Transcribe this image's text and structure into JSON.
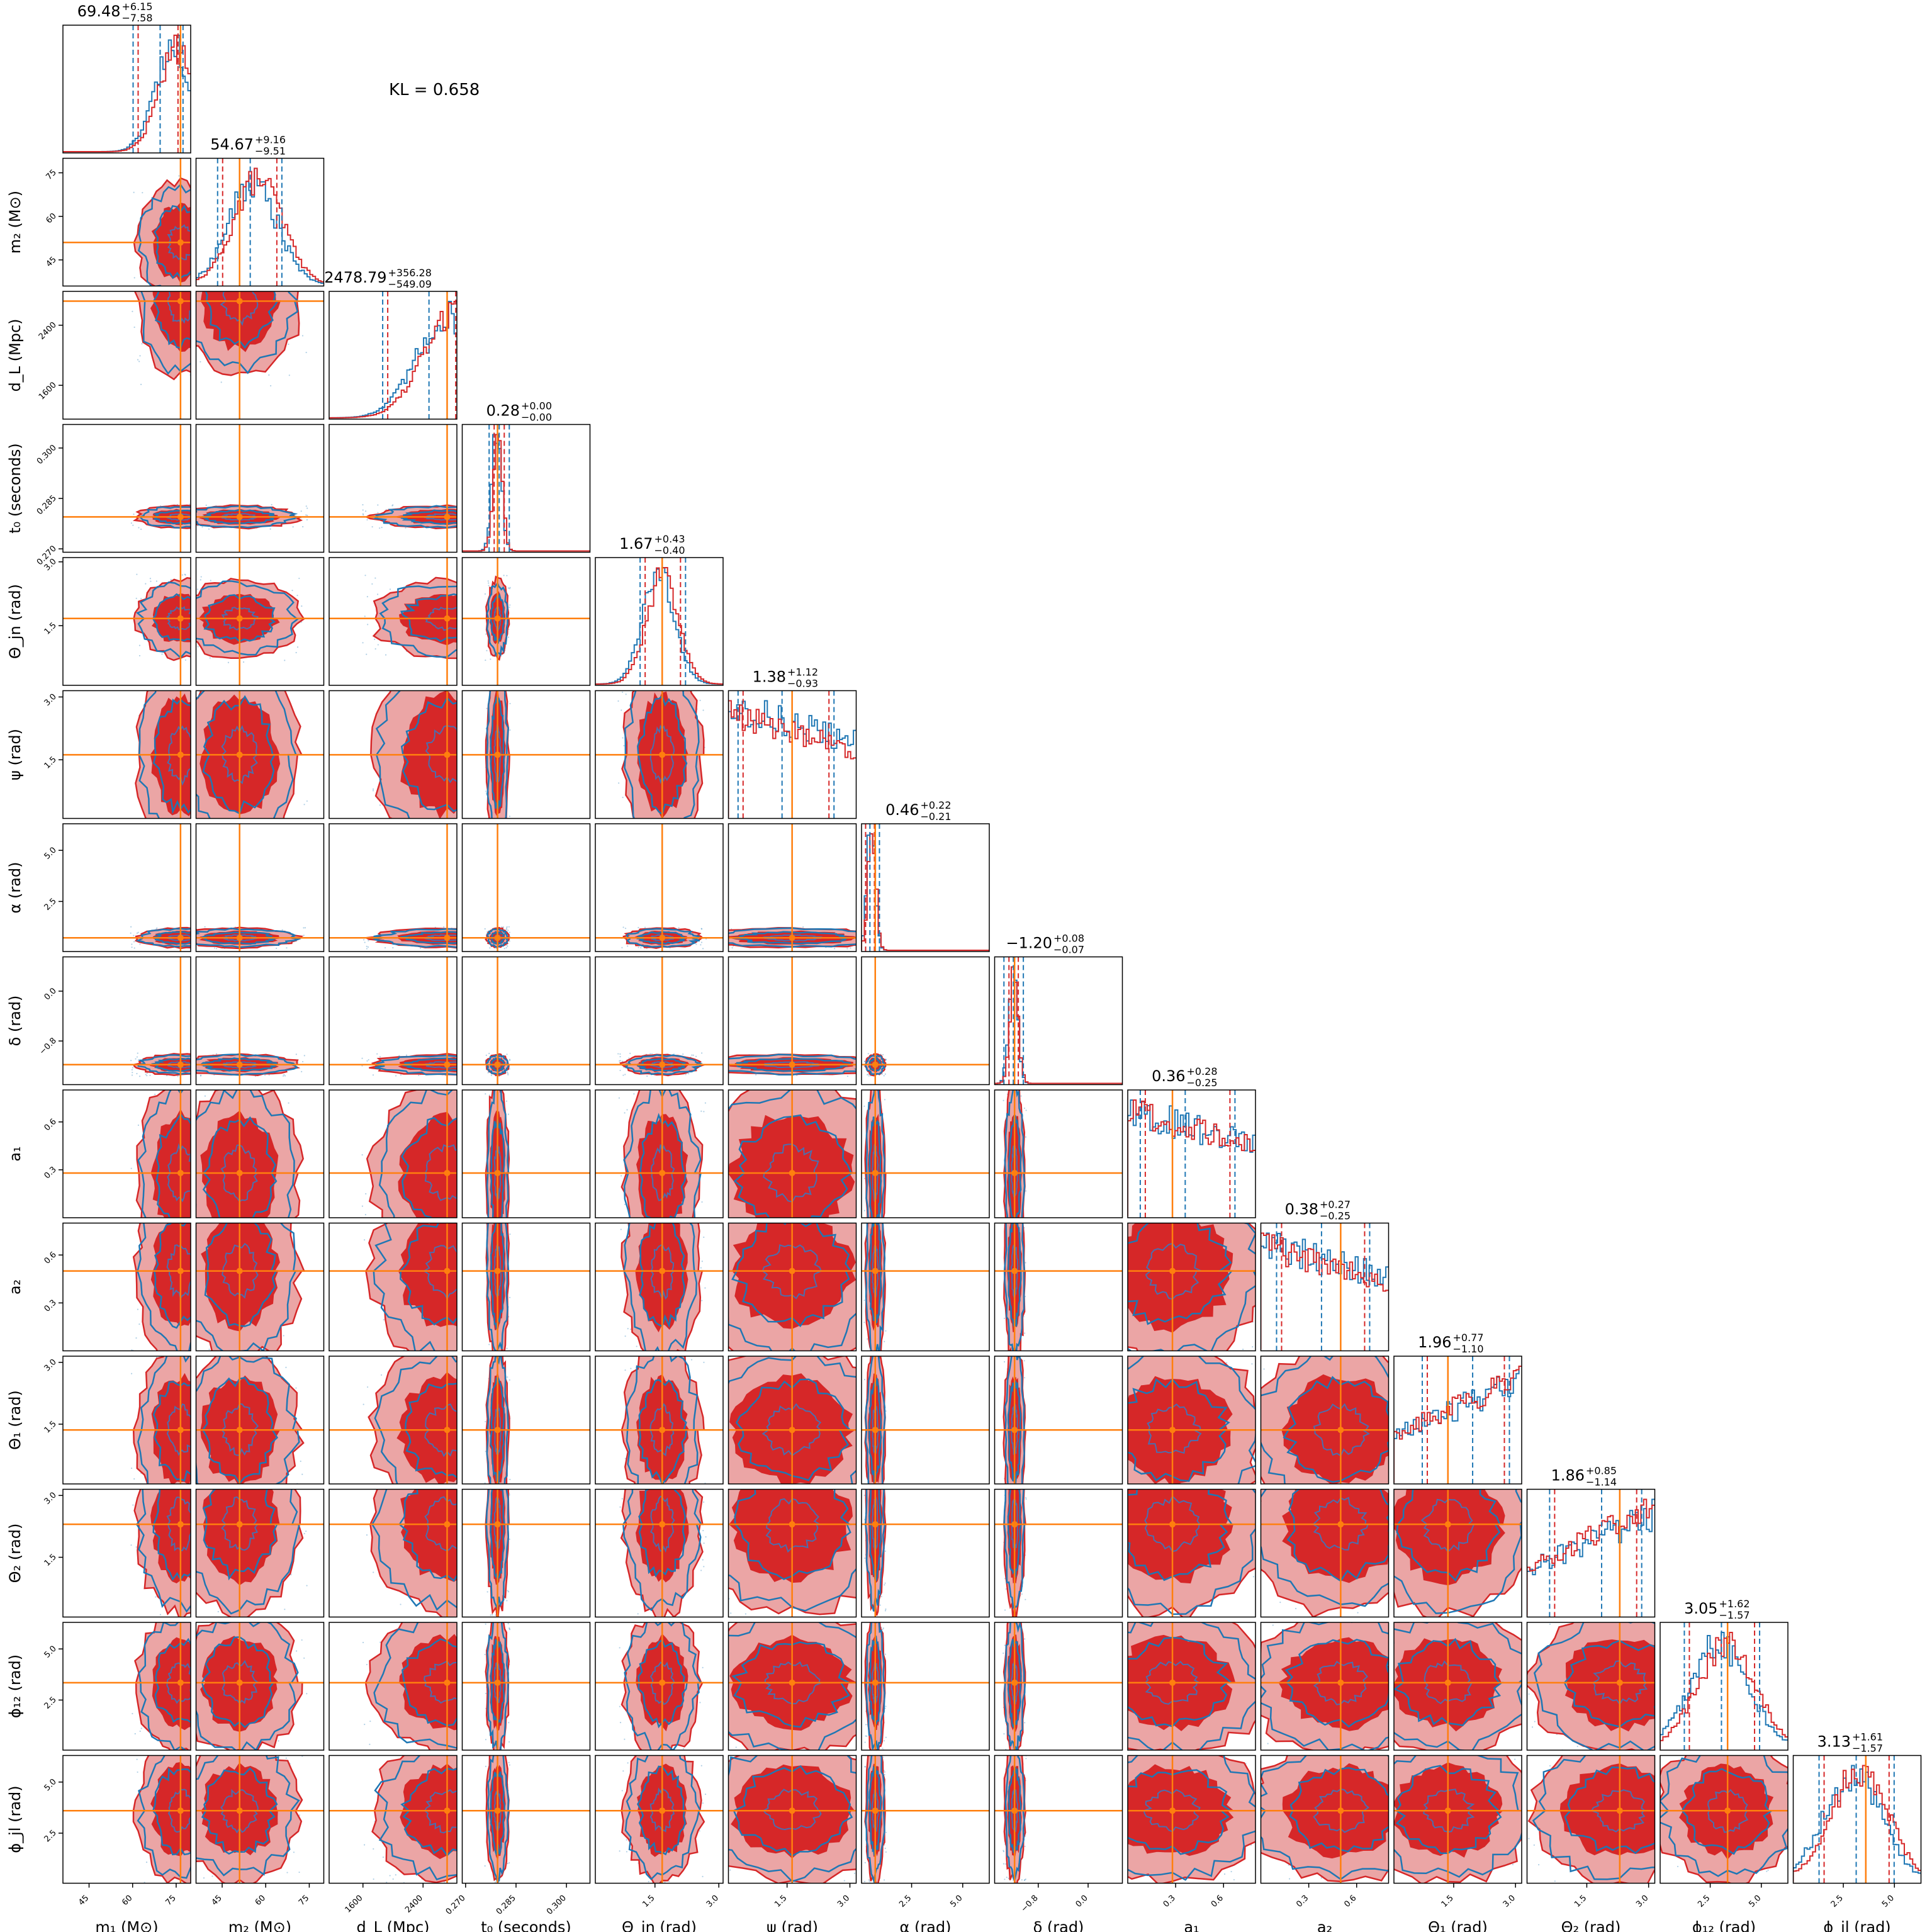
{
  "annotation": "KL = 0.658",
  "colors": {
    "series_blue": "#1f77b4",
    "series_red": "#d62728",
    "series_red_light": "#eba5a5",
    "truth": "#ff7f0e"
  },
  "chart_data": {
    "type": "corner",
    "series": [
      {
        "color": "#1f77b4",
        "style": "contours"
      },
      {
        "color": "#d62728",
        "style": "filled-contours"
      }
    ],
    "parameters": [
      {
        "label": "m₁ (M⊙)",
        "title": "69.48",
        "plus": "+6.15",
        "minus": "−7.58",
        "ticks": [
          "45",
          "60",
          "75"
        ],
        "range": [
          36,
          80
        ],
        "truth": 76.5,
        "q": [
          61.9,
          69.48,
          75.63
        ],
        "peak": 75
      },
      {
        "label": "m₂ (M⊙)",
        "title": "54.67",
        "plus": "+9.16",
        "minus": "−9.51",
        "ticks": [
          "45",
          "60",
          "75"
        ],
        "range": [
          36,
          80
        ],
        "truth": 51,
        "q": [
          45.16,
          54.67,
          63.83
        ],
        "peak": 57
      },
      {
        "label": "d_L (Mpc)",
        "title": "2478.79",
        "plus": "+356.28",
        "minus": "−549.09",
        "ticks": [
          "1600",
          "2400"
        ],
        "range": [
          1150,
          2850
        ],
        "truth": 2720,
        "q": [
          1929.7,
          2478.79,
          2835.07
        ],
        "peak": 2800
      },
      {
        "label": "t₀ (seconds)",
        "title": "0.28",
        "plus": "+0.00",
        "minus": "−0.00",
        "ticks": [
          "0.270",
          "0.285",
          "0.300"
        ],
        "range": [
          0.269,
          0.307
        ],
        "truth": 0.2795,
        "q": [
          0.2785,
          0.28,
          0.2815
        ],
        "peak": 0.2795
      },
      {
        "label": "Θ_jn (rad)",
        "title": "1.67",
        "plus": "+0.43",
        "minus": "−0.40",
        "ticks": [
          "1.5",
          "3.0"
        ],
        "range": [
          0.1,
          3.1
        ],
        "truth": 1.67,
        "q": [
          1.27,
          1.67,
          2.1
        ],
        "peak": 1.65
      },
      {
        "label": "ψ (rad)",
        "title": "1.38",
        "plus": "+1.12",
        "minus": "−0.93",
        "ticks": [
          "1.5",
          "3.0"
        ],
        "range": [
          0.1,
          3.15
        ],
        "truth": 1.62,
        "q": [
          0.45,
          1.38,
          2.5
        ],
        "peak": 0.6
      },
      {
        "label": "α (rad)",
        "title": "0.46",
        "plus": "+0.22",
        "minus": "−0.21",
        "ticks": [
          "2.5",
          "5.0"
        ],
        "range": [
          0.05,
          6.3
        ],
        "truth": 0.72,
        "q": [
          0.25,
          0.46,
          0.68
        ],
        "peak": 0.55
      },
      {
        "label": "δ (rad)",
        "title": "−1.20",
        "plus": "+0.08",
        "minus": "−0.07",
        "ticks": [
          "−0.8",
          "0.0"
        ],
        "range": [
          -1.5,
          0.55
        ],
        "truth": -1.18,
        "q": [
          -1.27,
          -1.2,
          -1.12
        ],
        "peak": -1.19
      },
      {
        "label": "a₁",
        "title": "0.36",
        "plus": "+0.28",
        "minus": "−0.25",
        "ticks": [
          "0.3",
          "0.6"
        ],
        "range": [
          0.0,
          0.8
        ],
        "truth": 0.28,
        "q": [
          0.11,
          0.36,
          0.64
        ],
        "peak": 0.1
      },
      {
        "label": "a₂",
        "title": "0.38",
        "plus": "+0.27",
        "minus": "−0.25",
        "ticks": [
          "0.3",
          "0.6"
        ],
        "range": [
          0.0,
          0.8
        ],
        "truth": 0.5,
        "q": [
          0.13,
          0.38,
          0.65
        ],
        "peak": 0.1
      },
      {
        "label": "Θ₁ (rad)",
        "title": "1.96",
        "plus": "+0.77",
        "minus": "−1.10",
        "ticks": [
          "1.5",
          "3.0"
        ],
        "range": [
          0.05,
          3.15
        ],
        "truth": 1.36,
        "q": [
          0.86,
          1.96,
          2.73
        ],
        "peak": 2.8
      },
      {
        "label": "Θ₂ (rad)",
        "title": "1.86",
        "plus": "+0.85",
        "minus": "−1.14",
        "ticks": [
          "1.5",
          "3.0"
        ],
        "range": [
          0.05,
          3.15
        ],
        "truth": 2.3,
        "q": [
          0.72,
          1.86,
          2.71
        ],
        "peak": 2.6
      },
      {
        "label": "ϕ₁₂ (rad)",
        "title": "3.05",
        "plus": "+1.62",
        "minus": "−1.57",
        "ticks": [
          "2.5",
          "5.0"
        ],
        "range": [
          0.05,
          6.3
        ],
        "truth": 3.35,
        "q": [
          1.48,
          3.05,
          4.67
        ],
        "peak": 3.2
      },
      {
        "label": "ϕ_jl (rad)",
        "title": "3.13",
        "plus": "+1.61",
        "minus": "−1.57",
        "ticks": [
          "2.5",
          "5.0"
        ],
        "range": [
          0.05,
          6.3
        ],
        "truth": 3.6,
        "q": [
          1.56,
          3.13,
          4.74
        ],
        "peak": 3.2
      }
    ]
  }
}
